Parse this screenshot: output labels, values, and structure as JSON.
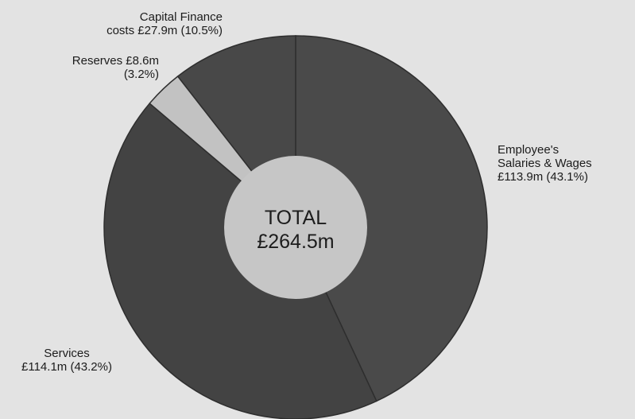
{
  "chart_data": {
    "type": "pie",
    "total_label": "TOTAL",
    "total_value": "£264.5m",
    "slices": [
      {
        "name": "Employee's Salaries & Wages",
        "value": 113.9,
        "percent": 43.1,
        "label_lines": [
          "Employee's",
          "Salaries & Wages",
          "£113.9m (43.1%)"
        ],
        "color": "#4a4a4a"
      },
      {
        "name": "Services",
        "value": 114.1,
        "percent": 43.2,
        "label_lines": [
          "Services",
          "£114.1m (43.2%)"
        ],
        "color": "#434343"
      },
      {
        "name": "Reserves",
        "value": 8.6,
        "percent": 3.2,
        "label_lines": [
          "Reserves £8.6m",
          "(3.2%)"
        ],
        "color": "#c2c2c2"
      },
      {
        "name": "Capital Finance costs",
        "value": 27.9,
        "percent": 10.5,
        "label_lines": [
          "Capital Finance",
          "costs £27.9m (10.5%)"
        ],
        "color": "#484848"
      }
    ],
    "colors": {
      "background": "#e3e3e3",
      "center": "#c6c6c6",
      "divider": "#2e2e2e"
    }
  }
}
